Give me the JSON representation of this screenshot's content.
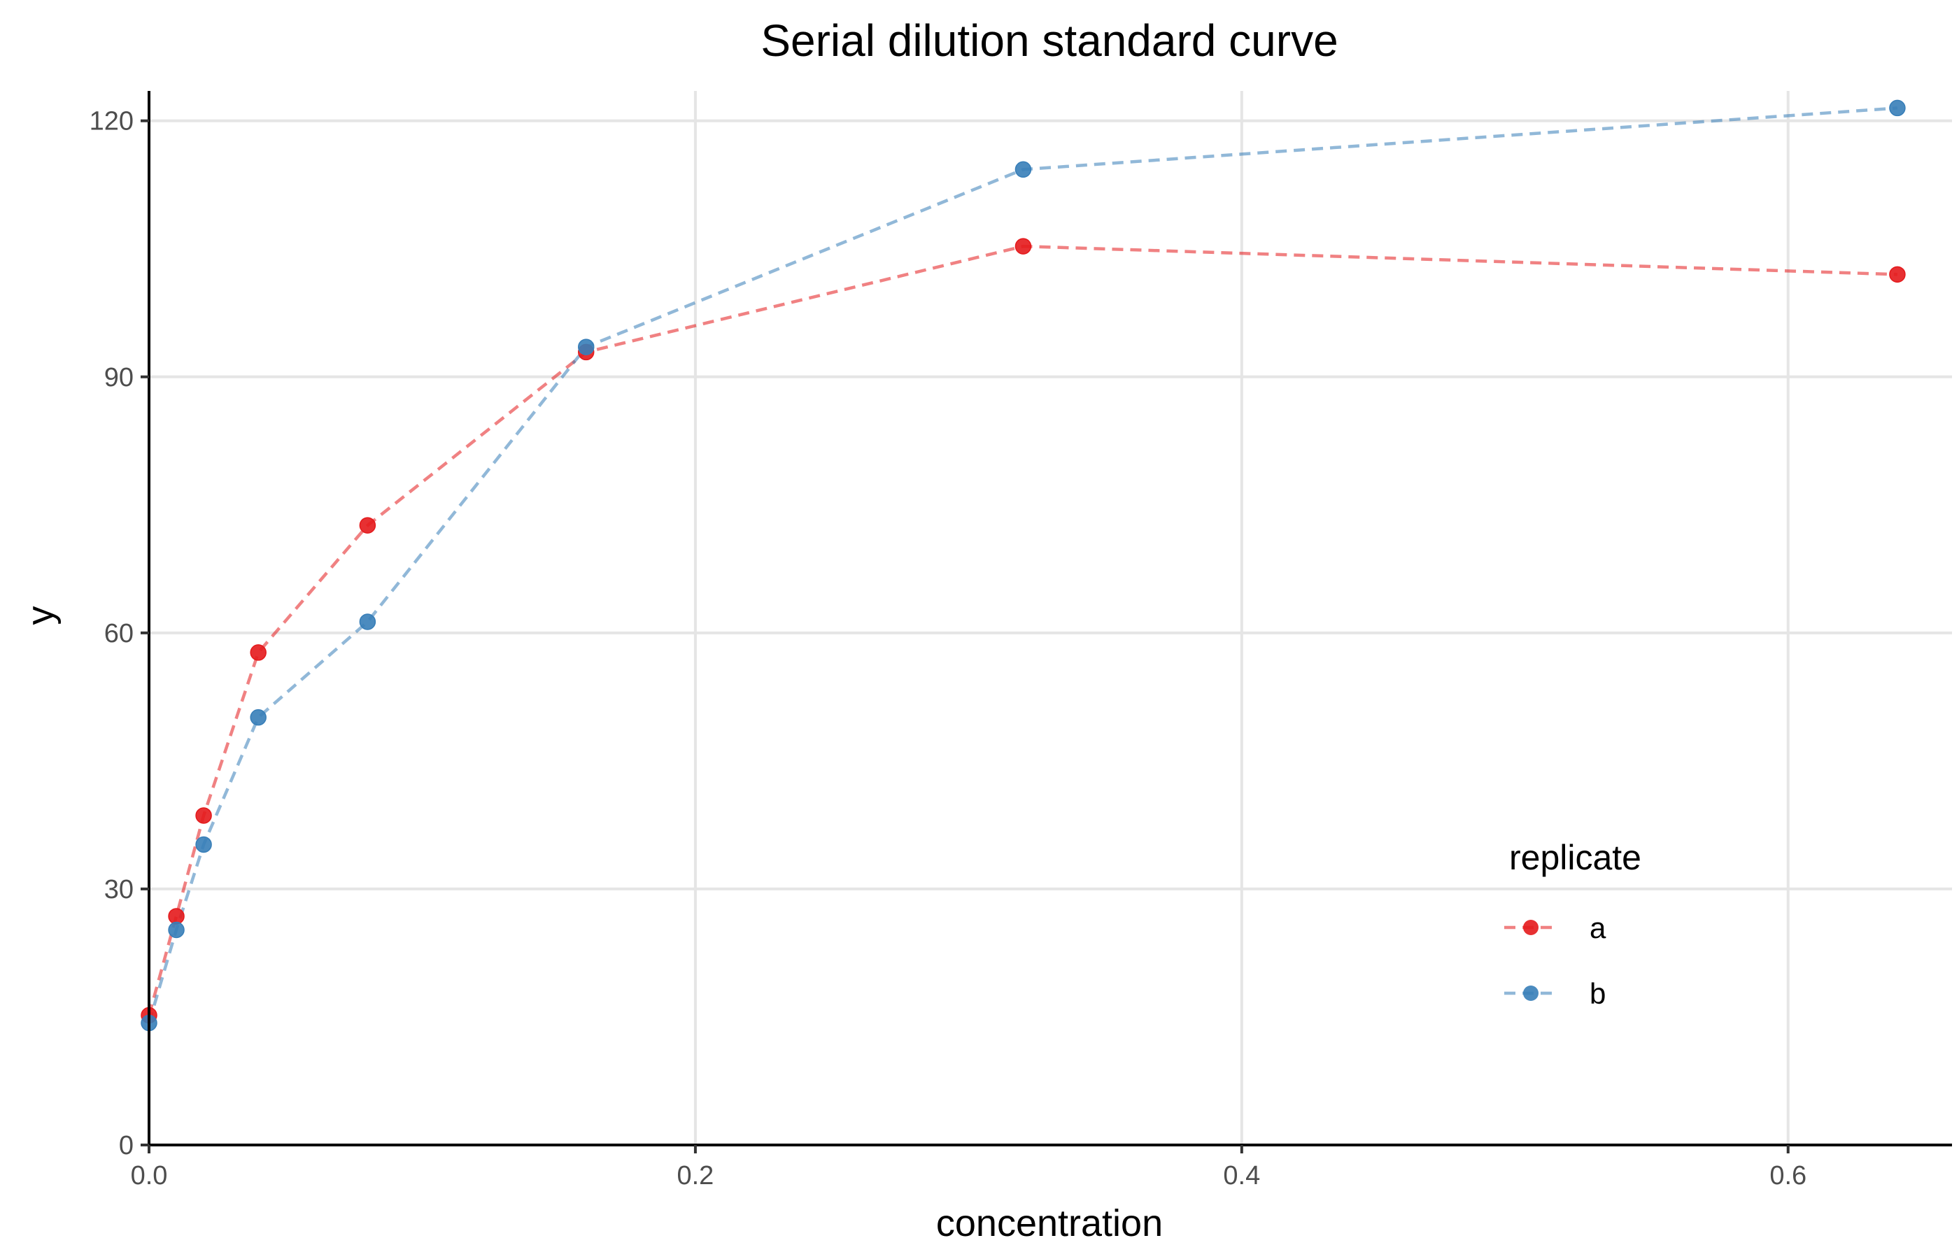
{
  "chart_data": {
    "type": "line",
    "title": "Serial dilution standard curve",
    "xlabel": "concentration",
    "ylabel": "y",
    "xlim": [
      0,
      0.66
    ],
    "ylim": [
      0,
      123.5
    ],
    "xticks": [
      0.0,
      0.2,
      0.4,
      0.6
    ],
    "xtick_labels": [
      "0.0",
      "0.2",
      "0.4",
      "0.6"
    ],
    "yticks": [
      0,
      30,
      60,
      90,
      120
    ],
    "ytick_labels": [
      "0",
      "30",
      "60",
      "90",
      "120"
    ],
    "grid": true,
    "legend": {
      "title": "replicate",
      "placement": "bottom-right"
    },
    "line_style": "dashed",
    "series": [
      {
        "name": "a",
        "color": "#e41a1c",
        "x": [
          0.0,
          0.01,
          0.02,
          0.04,
          0.08,
          0.16,
          0.32,
          0.64
        ],
        "y": [
          15.2,
          26.8,
          38.6,
          57.7,
          72.6,
          92.9,
          105.3,
          102.0
        ]
      },
      {
        "name": "b",
        "color": "#377eb8",
        "x": [
          0.0,
          0.01,
          0.02,
          0.04,
          0.08,
          0.16,
          0.32,
          0.64
        ],
        "y": [
          14.3,
          25.2,
          35.2,
          50.1,
          61.3,
          93.5,
          114.3,
          121.5
        ]
      }
    ]
  }
}
